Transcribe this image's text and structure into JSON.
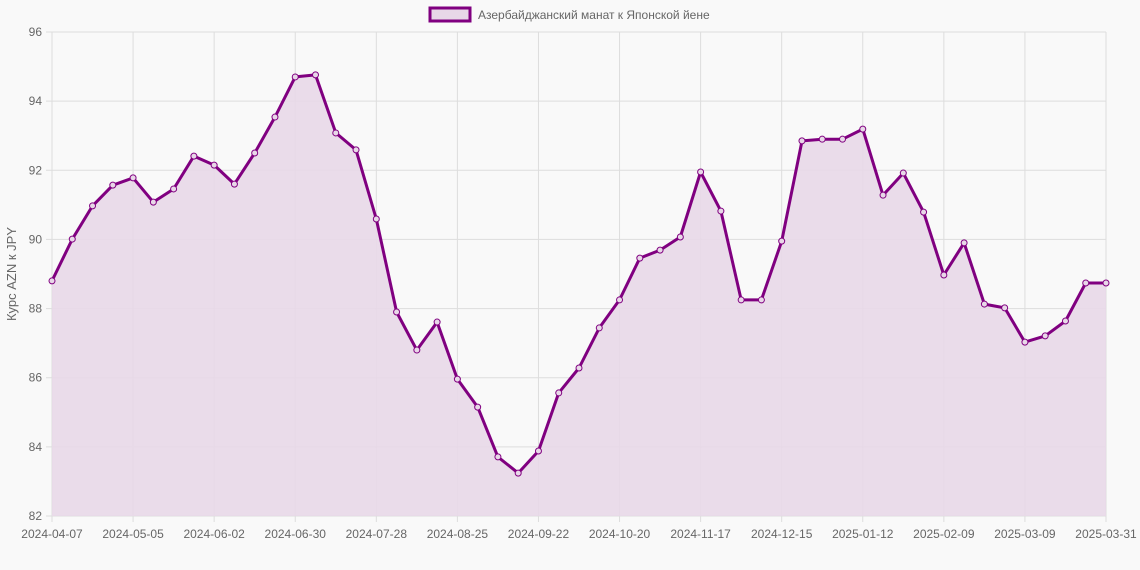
{
  "chart_data": {
    "type": "line",
    "title": "",
    "legend": {
      "label": "Азербайджанский манат к Японской йене",
      "position": "top"
    },
    "xlabel": "",
    "ylabel": "Курс AZN к JPY",
    "ylim": [
      82,
      96
    ],
    "yticks": [
      82,
      84,
      86,
      88,
      90,
      92,
      94,
      96
    ],
    "xtick_labels": [
      "2024-04-07",
      "2024-05-05",
      "2024-06-02",
      "2024-06-30",
      "2024-07-28",
      "2024-08-25",
      "2024-09-22",
      "2024-10-20",
      "2024-11-17",
      "2024-12-15",
      "2025-01-12",
      "2025-02-09",
      "2025-03-09",
      "2025-03-31"
    ],
    "grid": true,
    "fill": true,
    "colors": {
      "line": "#800080",
      "fill": "#e8d8e8",
      "grid": "#dddddd"
    },
    "x": [
      "2024-04-07",
      "2024-04-14",
      "2024-04-21",
      "2024-04-28",
      "2024-05-05",
      "2024-05-12",
      "2024-05-19",
      "2024-05-26",
      "2024-06-02",
      "2024-06-09",
      "2024-06-16",
      "2024-06-23",
      "2024-06-30",
      "2024-07-07",
      "2024-07-14",
      "2024-07-21",
      "2024-07-28",
      "2024-08-04",
      "2024-08-11",
      "2024-08-18",
      "2024-08-25",
      "2024-09-01",
      "2024-09-08",
      "2024-09-15",
      "2024-09-22",
      "2024-09-29",
      "2024-10-06",
      "2024-10-13",
      "2024-10-20",
      "2024-10-27",
      "2024-11-03",
      "2024-11-10",
      "2024-11-17",
      "2024-11-24",
      "2024-12-01",
      "2024-12-08",
      "2024-12-15",
      "2024-12-22",
      "2024-12-29",
      "2025-01-05",
      "2025-01-12",
      "2025-01-19",
      "2025-01-26",
      "2025-02-02",
      "2025-02-09",
      "2025-02-16",
      "2025-02-23",
      "2025-03-02",
      "2025-03-09",
      "2025-03-16",
      "2025-03-23",
      "2025-03-30",
      "2025-03-31"
    ],
    "series": [
      {
        "name": "Азербайджанский манат к Японской йене",
        "values": [
          88.8,
          90.01,
          90.97,
          91.57,
          91.78,
          91.08,
          91.46,
          92.41,
          92.15,
          91.6,
          92.5,
          93.54,
          94.7,
          94.76,
          93.08,
          92.59,
          90.59,
          87.9,
          86.8,
          87.61,
          85.96,
          85.15,
          83.71,
          83.24,
          83.88,
          85.56,
          86.28,
          87.44,
          88.25,
          89.46,
          89.69,
          90.07,
          91.95,
          90.82,
          88.25,
          88.25,
          89.95,
          92.85,
          92.9,
          92.9,
          93.19,
          91.28,
          91.92,
          90.79,
          88.97,
          89.9,
          88.13,
          88.02,
          87.03,
          87.21,
          87.64,
          88.74,
          88.74
        ]
      }
    ]
  }
}
